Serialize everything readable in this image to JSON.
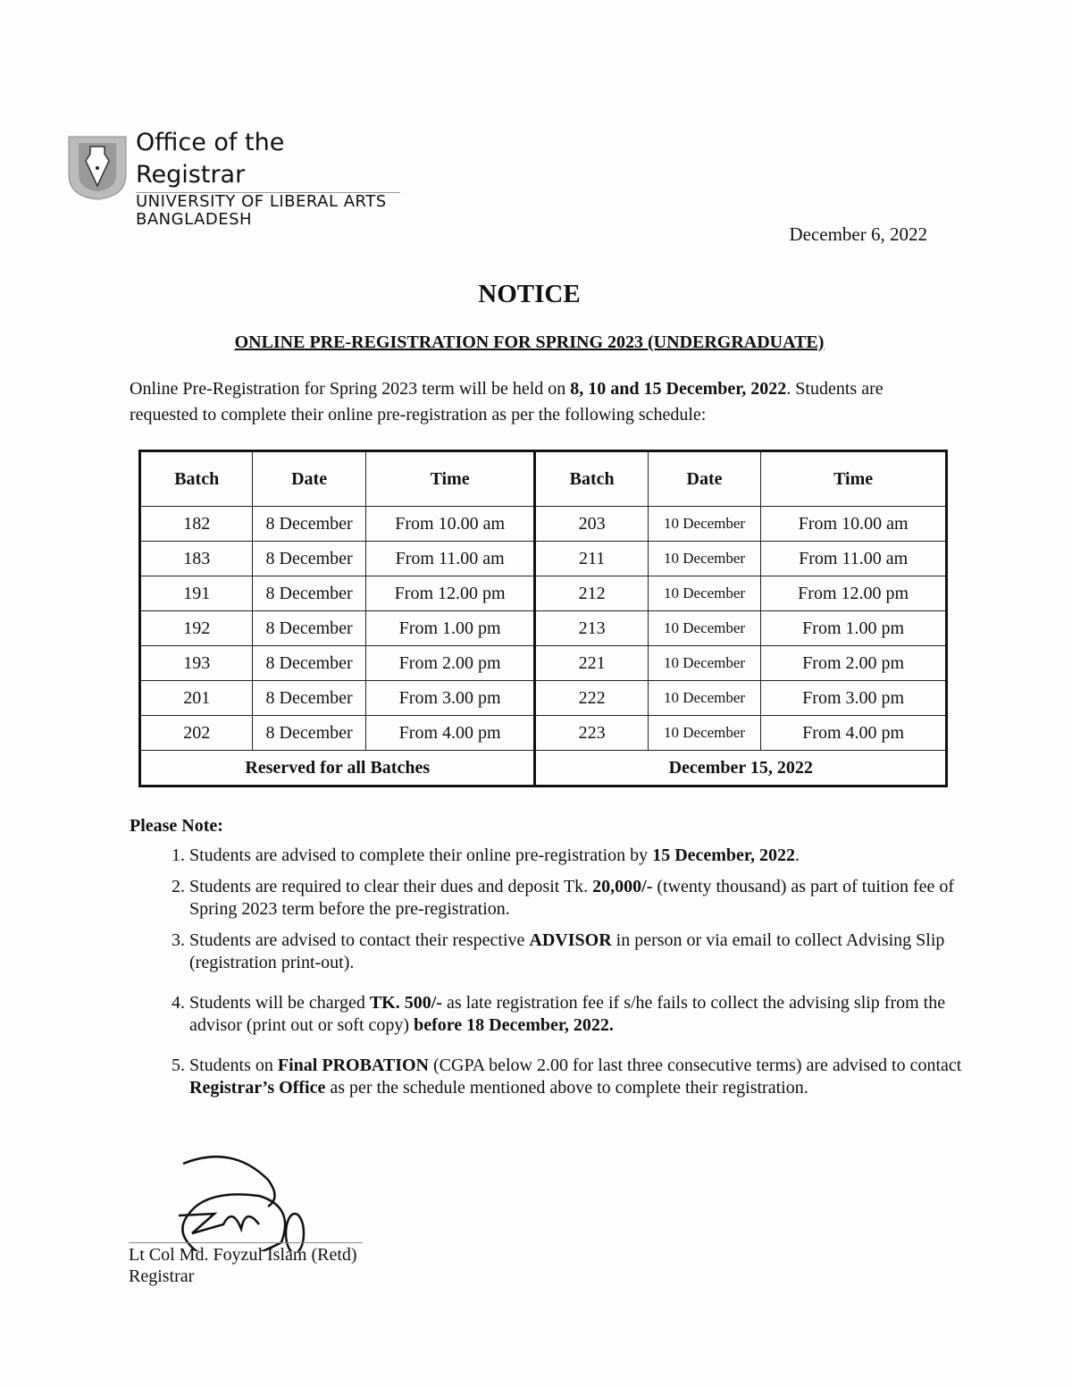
{
  "header": {
    "office": "Office of the Registrar",
    "university": "UNIVERSITY OF LIBERAL ARTS",
    "country": "BANGLADESH",
    "logo_icon": "fountain-pen-crest"
  },
  "date": "December 6, 2022",
  "title": "NOTICE",
  "subtitle": "ONLINE PRE-REGISTRATION FOR SPRING 2023 (UNDERGRADUATE)",
  "intro": {
    "p1": "Online Pre-Registration for Spring 2023 term will be held on ",
    "b1": "8, 10 and 15 December, 2022",
    "p2": ". Students are requested to complete their online pre-registration as per the following schedule:"
  },
  "table": {
    "headers": [
      "Batch",
      "Date",
      "Time",
      "Batch",
      "Date",
      "Time"
    ],
    "rows": [
      [
        "182",
        "8 December",
        "From 10.00 am",
        "203",
        "10 December",
        "From 10.00 am"
      ],
      [
        "183",
        "8 December",
        "From 11.00 am",
        "211",
        "10 December",
        "From 11.00 am"
      ],
      [
        "191",
        "8 December",
        "From 12.00 pm",
        "212",
        "10 December",
        "From 12.00 pm"
      ],
      [
        "192",
        "8 December",
        "From 1.00 pm",
        "213",
        "10 December",
        "From 1.00 pm"
      ],
      [
        "193",
        "8 December",
        "From 2.00 pm",
        "221",
        "10 December",
        "From 2.00 pm"
      ],
      [
        "201",
        "8 December",
        "From 3.00 pm",
        "222",
        "10 December",
        "From 3.00 pm"
      ],
      [
        "202",
        "8 December",
        "From 4.00 pm",
        "223",
        "10 December",
        "From 4.00 pm"
      ]
    ],
    "footer_left": "Reserved for all Batches",
    "footer_right": "December 15, 2022"
  },
  "notes_title": "Please Note:",
  "notes": [
    {
      "a": "Students are advised to complete their online pre-registration by ",
      "b": "15 December, 2022",
      "c": ".",
      "d": "",
      "e": ""
    },
    {
      "a": "Students are required to clear their dues and deposit Tk. ",
      "b": "20,000/-",
      "c": " (twenty thousand) as part of tuition fee of Spring 2023 term before the pre-registration.",
      "d": "",
      "e": ""
    },
    {
      "a": "Students are advised to contact their respective ",
      "b": "ADVISOR",
      "c": " in person or via email to collect Advising Slip (registration print-out).",
      "d": "",
      "e": ""
    },
    {
      "a": "Students will be charged ",
      "b": "TK. 500/-",
      "c": " as late registration fee if s/he fails to collect the advising slip from the advisor (print out or soft copy) ",
      "d": "before 18 December, 2022.",
      "e": ""
    },
    {
      "a": "Students on ",
      "b": "Final PROBATION",
      "c": " (CGPA below 2.00 for last three consecutive terms) are advised to contact ",
      "d": "Registrar’s Office",
      "e": " as per the schedule mentioned above to complete their registration."
    }
  ],
  "signatory": {
    "name": "Lt Col Md. Foyzul Islam (Retd)",
    "designation": "Registrar"
  }
}
